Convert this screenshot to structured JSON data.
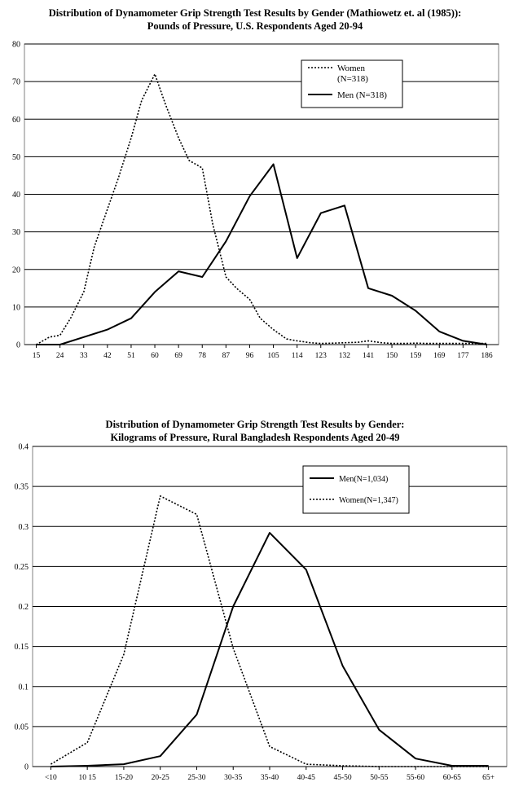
{
  "chart_data": [
    {
      "type": "line",
      "title_line1": "Distribution of Dynamometer Grip Strength Test Results by Gender (Mathiowetz et. al (1985)):",
      "title_line2": "Pounds of Pressure, U.S. Respondents Aged 20-94",
      "xlabel": "",
      "ylabel": "",
      "ylim": [
        0,
        80
      ],
      "yticks": [
        0,
        10,
        20,
        30,
        40,
        50,
        60,
        70,
        80
      ],
      "categories": [
        "15",
        "24",
        "33",
        "42",
        "51",
        "60",
        "69",
        "78",
        "87",
        "96",
        "105",
        "114",
        "123",
        "132",
        "141",
        "150",
        "159",
        "169",
        "177",
        "186"
      ],
      "grid": true,
      "legend_position": "top-right",
      "series": [
        {
          "name": "Women (N=318)",
          "style": "dotted",
          "x": [
            15,
            20,
            24,
            28,
            33,
            37,
            42,
            46,
            51,
            55,
            60,
            64,
            69,
            73,
            78,
            82,
            87,
            91,
            96,
            100,
            105,
            110,
            114,
            119,
            123,
            128,
            132,
            137,
            141,
            146,
            150,
            155,
            159,
            164,
            169,
            173,
            177,
            182,
            186
          ],
          "values": [
            0,
            2,
            2.5,
            7,
            14,
            26,
            36,
            44,
            55,
            65,
            72,
            64,
            55,
            49,
            47,
            32,
            18,
            15,
            12,
            7,
            4,
            1.5,
            1,
            0.5,
            0.3,
            0.4,
            0.5,
            0.6,
            1,
            0.5,
            0.3,
            0.3,
            0.4,
            0.3,
            0.3,
            0.3,
            0.3,
            0.3,
            0.3
          ]
        },
        {
          "name": "Men (N=318)",
          "style": "solid",
          "x": [
            15,
            24,
            33,
            42,
            51,
            60,
            69,
            78,
            87,
            96,
            105,
            114,
            123,
            132,
            141,
            150,
            159,
            169,
            177,
            186
          ],
          "values": [
            0,
            0,
            2,
            4,
            7,
            14,
            19.5,
            18,
            27.5,
            39.5,
            48,
            23,
            35,
            37,
            15,
            13,
            9,
            3.5,
            1,
            0
          ]
        }
      ],
      "colors": {
        "line": "#000000",
        "grid": "#000000",
        "frame": "#808080"
      }
    },
    {
      "type": "line",
      "title_line1": "Distribution of Dynamometer Grip Strength Test Results by Gender:",
      "title_line2": "Kilograms of Pressure, Rural Bangladesh Respondents Aged 20-49",
      "xlabel": "",
      "ylabel": "",
      "ylim": [
        0,
        0.4
      ],
      "yticks": [
        "0",
        "0.05",
        "0.1",
        "0.15",
        "0.2",
        "0.25",
        "0.3",
        "0.35",
        "0.4"
      ],
      "categories": [
        "<10",
        "10 15",
        "15-20",
        "20-25",
        "25-30",
        "30-35",
        "35-40",
        "40-45",
        "45-50",
        "50-55",
        "55-60",
        "60-65",
        "65+"
      ],
      "grid": true,
      "legend_position": "top-right",
      "series": [
        {
          "name": "Men(N=1,034)",
          "style": "solid",
          "values": [
            0,
            0.001,
            0.003,
            0.013,
            0.065,
            0.2,
            0.292,
            0.246,
            0.126,
            0.046,
            0.01,
            0.001,
            0.001
          ]
        },
        {
          "name": "Women(N=1,347)",
          "style": "dotted",
          "values": [
            0.003,
            0.03,
            0.14,
            0.338,
            0.315,
            0.148,
            0.025,
            0.003,
            0.001,
            0,
            0,
            0,
            0
          ]
        }
      ],
      "colors": {
        "line": "#000000",
        "grid": "#000000",
        "frame": "#808080"
      }
    }
  ]
}
